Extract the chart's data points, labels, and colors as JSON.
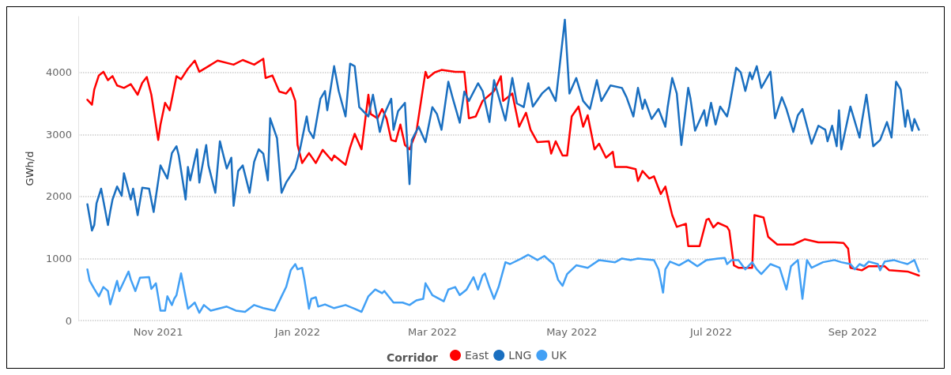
{
  "chart_data": {
    "type": "line",
    "ylabel": "GWh/d",
    "legend_title": "Corridor",
    "legend": "bottom",
    "grid": "y",
    "marker": "none",
    "line_style": "solid",
    "xlim": [
      "2021-09-27",
      "2022-10-04"
    ],
    "xticks": [
      {
        "value": "2021-11-01",
        "label": "Nov 2021"
      },
      {
        "value": "2022-01-01",
        "label": "Jan 2022"
      },
      {
        "value": "2022-03-01",
        "label": "Mar 2022"
      },
      {
        "value": "2022-05-01",
        "label": "May 2022"
      },
      {
        "value": "2022-07-01",
        "label": "Jul 2022"
      },
      {
        "value": "2022-09-01",
        "label": "Sep 2022"
      }
    ],
    "ylim": [
      0,
      4900
    ],
    "yticks": [
      0,
      1000,
      2000,
      3000,
      4000
    ],
    "series": [
      {
        "name": "East",
        "color": "#ff0000",
        "x": [
          "2021-10-01",
          "2021-10-03",
          "2021-10-04",
          "2021-10-06",
          "2021-10-08",
          "2021-10-10",
          "2021-10-12",
          "2021-10-14",
          "2021-10-17",
          "2021-10-20",
          "2021-10-23",
          "2021-10-25",
          "2021-10-27",
          "2021-10-29",
          "2021-11-01",
          "2021-11-02",
          "2021-11-04",
          "2021-11-06",
          "2021-11-09",
          "2021-11-11",
          "2021-11-14",
          "2021-11-17",
          "2021-11-19",
          "2021-11-23",
          "2021-11-27",
          "2021-12-04",
          "2021-12-08",
          "2021-12-13",
          "2021-12-17",
          "2021-12-18",
          "2021-12-21",
          "2021-12-24",
          "2021-12-27",
          "2021-12-29",
          "2021-12-31",
          "2022-01-01",
          "2022-01-03",
          "2022-01-06",
          "2022-01-09",
          "2022-01-12",
          "2022-01-16",
          "2022-01-17",
          "2022-01-22",
          "2022-01-24",
          "2022-01-26",
          "2022-01-29",
          "2022-02-01",
          "2022-02-02",
          "2022-02-05",
          "2022-02-07",
          "2022-02-09",
          "2022-02-11",
          "2022-02-13",
          "2022-02-15",
          "2022-02-17",
          "2022-02-19",
          "2022-02-22",
          "2022-02-26",
          "2022-02-27",
          "2022-03-02",
          "2022-03-05",
          "2022-03-11",
          "2022-03-15",
          "2022-03-17",
          "2022-03-20",
          "2022-03-23",
          "2022-03-28",
          "2022-03-31",
          "2022-04-01",
          "2022-04-05",
          "2022-04-08",
          "2022-04-11",
          "2022-04-13",
          "2022-04-16",
          "2022-04-21",
          "2022-04-22",
          "2022-04-24",
          "2022-04-27",
          "2022-04-29",
          "2022-05-01",
          "2022-05-04",
          "2022-05-06",
          "2022-05-08",
          "2022-05-11",
          "2022-05-13",
          "2022-05-16",
          "2022-05-19",
          "2022-05-20",
          "2022-05-25",
          "2022-05-29",
          "2022-05-30",
          "2022-06-01",
          "2022-06-04",
          "2022-06-06",
          "2022-06-09",
          "2022-06-11",
          "2022-06-12",
          "2022-06-14",
          "2022-06-16",
          "2022-06-20",
          "2022-06-21",
          "2022-06-26",
          "2022-06-29",
          "2022-06-30",
          "2022-07-02",
          "2022-07-04",
          "2022-07-08",
          "2022-07-09",
          "2022-07-11",
          "2022-07-13",
          "2022-07-19",
          "2022-07-20",
          "2022-07-24",
          "2022-07-26",
          "2022-07-30",
          "2022-08-06",
          "2022-08-11",
          "2022-08-17",
          "2022-08-24",
          "2022-08-28",
          "2022-08-30",
          "2022-08-31",
          "2022-09-05",
          "2022-09-08",
          "2022-09-15",
          "2022-09-17",
          "2022-09-25",
          "2022-09-30"
        ],
        "values": [
          3560,
          3480,
          3725,
          3950,
          4010,
          3875,
          3940,
          3790,
          3750,
          3810,
          3640,
          3830,
          3925,
          3640,
          2910,
          3160,
          3510,
          3390,
          3940,
          3890,
          4060,
          4190,
          4010,
          4100,
          4190,
          4125,
          4200,
          4125,
          4220,
          3910,
          3950,
          3690,
          3660,
          3750,
          3540,
          2830,
          2540,
          2700,
          2540,
          2750,
          2580,
          2660,
          2510,
          2790,
          3010,
          2760,
          3640,
          3330,
          3260,
          3410,
          3250,
          2910,
          2890,
          3160,
          2830,
          2760,
          3040,
          4010,
          3910,
          4000,
          4040,
          4010,
          4010,
          3260,
          3290,
          3540,
          3700,
          3940,
          3540,
          3660,
          3125,
          3350,
          3075,
          2875,
          2890,
          2690,
          2890,
          2660,
          2660,
          3290,
          3450,
          3125,
          3310,
          2760,
          2850,
          2625,
          2720,
          2475,
          2475,
          2440,
          2250,
          2410,
          2290,
          2325,
          2040,
          2160,
          2000,
          1700,
          1510,
          1560,
          1200,
          1200,
          1625,
          1640,
          1500,
          1575,
          1510,
          1450,
          890,
          850,
          850,
          1700,
          1660,
          1350,
          1225,
          1225,
          1310,
          1260,
          1260,
          1250,
          1160,
          850,
          810,
          875,
          875,
          810,
          790,
          725
        ]
      },
      {
        "name": "LNG",
        "color": "#1a6fc0",
        "x": [
          "2021-10-01",
          "2021-10-03",
          "2021-10-04",
          "2021-10-05",
          "2021-10-07",
          "2021-10-10",
          "2021-10-11",
          "2021-10-12",
          "2021-10-14",
          "2021-10-16",
          "2021-10-17",
          "2021-10-20",
          "2021-10-21",
          "2021-10-23",
          "2021-10-25",
          "2021-10-28",
          "2021-10-30",
          "2021-11-02",
          "2021-11-05",
          "2021-11-07",
          "2021-11-09",
          "2021-11-10",
          "2021-11-13",
          "2021-11-14",
          "2021-11-15",
          "2021-11-18",
          "2021-11-19",
          "2021-11-22",
          "2021-11-23",
          "2021-11-26",
          "2021-11-28",
          "2021-12-01",
          "2021-12-03",
          "2021-12-04",
          "2021-12-06",
          "2021-12-08",
          "2021-12-11",
          "2021-12-13",
          "2021-12-15",
          "2021-12-17",
          "2021-12-19",
          "2021-12-20",
          "2021-12-23",
          "2021-12-25",
          "2021-12-27",
          "2021-12-31",
          "2022-01-02",
          "2022-01-05",
          "2022-01-06",
          "2022-01-08",
          "2022-01-11",
          "2022-01-13",
          "2022-01-14",
          "2022-01-17",
          "2022-01-19",
          "2022-01-22",
          "2022-01-24",
          "2022-01-26",
          "2022-01-28",
          "2022-02-01",
          "2022-02-03",
          "2022-02-06",
          "2022-02-08",
          "2022-02-11",
          "2022-02-12",
          "2022-02-14",
          "2022-02-17",
          "2022-02-19",
          "2022-02-20",
          "2022-02-23",
          "2022-02-26",
          "2022-03-01",
          "2022-03-03",
          "2022-03-05",
          "2022-03-08",
          "2022-03-10",
          "2022-03-13",
          "2022-03-15",
          "2022-03-17",
          "2022-03-21",
          "2022-03-23",
          "2022-03-26",
          "2022-03-28",
          "2022-04-02",
          "2022-04-05",
          "2022-04-07",
          "2022-04-10",
          "2022-04-12",
          "2022-04-14",
          "2022-04-18",
          "2022-04-21",
          "2022-04-24",
          "2022-04-28",
          "2022-04-30",
          "2022-05-03",
          "2022-05-06",
          "2022-05-09",
          "2022-05-12",
          "2022-05-14",
          "2022-05-18",
          "2022-05-23",
          "2022-05-25",
          "2022-05-28",
          "2022-05-30",
          "2022-06-01",
          "2022-06-02",
          "2022-06-05",
          "2022-06-08",
          "2022-06-11",
          "2022-06-12",
          "2022-06-14",
          "2022-06-16",
          "2022-06-18",
          "2022-06-21",
          "2022-06-22",
          "2022-06-24",
          "2022-06-28",
          "2022-06-29",
          "2022-07-01",
          "2022-07-03",
          "2022-07-05",
          "2022-07-08",
          "2022-07-09",
          "2022-07-12",
          "2022-07-14",
          "2022-07-16",
          "2022-07-18",
          "2022-07-19",
          "2022-07-21",
          "2022-07-23",
          "2022-07-27",
          "2022-07-29",
          "2022-08-01",
          "2022-08-03",
          "2022-08-06",
          "2022-08-08",
          "2022-08-10",
          "2022-08-14",
          "2022-08-17",
          "2022-08-20",
          "2022-08-21",
          "2022-08-23",
          "2022-08-25",
          "2022-08-26",
          "2022-08-27",
          "2022-08-31",
          "2022-09-04",
          "2022-09-05",
          "2022-09-07",
          "2022-09-10",
          "2022-09-13",
          "2022-09-16",
          "2022-09-18",
          "2022-09-20",
          "2022-09-22",
          "2022-09-24",
          "2022-09-25",
          "2022-09-27",
          "2022-09-28",
          "2022-09-30"
        ],
        "values": [
          1875,
          1450,
          1540,
          1890,
          2125,
          1540,
          1760,
          1950,
          2160,
          2010,
          2375,
          1950,
          2125,
          1700,
          2140,
          2125,
          1750,
          2500,
          2290,
          2700,
          2810,
          2660,
          1950,
          2475,
          2260,
          2760,
          2225,
          2830,
          2500,
          2060,
          2890,
          2450,
          2625,
          1850,
          2410,
          2500,
          2060,
          2560,
          2760,
          2690,
          2260,
          3260,
          2940,
          2060,
          2225,
          2450,
          2750,
          3290,
          3060,
          2940,
          3575,
          3700,
          3390,
          4100,
          3700,
          3290,
          4140,
          4100,
          3440,
          3290,
          3640,
          3040,
          3330,
          3575,
          3075,
          3375,
          3510,
          2200,
          2910,
          3125,
          2875,
          3440,
          3330,
          3075,
          3850,
          3575,
          3190,
          3690,
          3540,
          3825,
          3700,
          3200,
          3875,
          3225,
          3910,
          3500,
          3440,
          3825,
          3450,
          3660,
          3760,
          3540,
          4850,
          3660,
          3910,
          3540,
          3410,
          3875,
          3540,
          3790,
          3750,
          3600,
          3290,
          3750,
          3410,
          3560,
          3250,
          3410,
          3125,
          3440,
          3910,
          3660,
          2830,
          3750,
          3575,
          3060,
          3390,
          3140,
          3510,
          3160,
          3450,
          3290,
          3450,
          4075,
          4000,
          3700,
          4000,
          3890,
          4100,
          3750,
          4010,
          3260,
          3600,
          3410,
          3040,
          3310,
          3410,
          2850,
          3140,
          3075,
          2890,
          3140,
          2810,
          3390,
          2760,
          3450,
          2950,
          3200,
          3640,
          2810,
          2910,
          3200,
          2950,
          3850,
          3725,
          3125,
          3390,
          3060,
          3250,
          3075
        ]
      },
      {
        "name": "UK",
        "color": "#42a0f5",
        "x": [
          "2021-10-01",
          "2021-10-02",
          "2021-10-04",
          "2021-10-06",
          "2021-10-08",
          "2021-10-10",
          "2021-10-11",
          "2021-10-14",
          "2021-10-15",
          "2021-10-19",
          "2021-10-20",
          "2021-10-22",
          "2021-10-24",
          "2021-10-28",
          "2021-10-29",
          "2021-10-31",
          "2021-11-02",
          "2021-11-04",
          "2021-11-05",
          "2021-11-07",
          "2021-11-08",
          "2021-11-09",
          "2021-11-11",
          "2021-11-13",
          "2021-11-14",
          "2021-11-17",
          "2021-11-19",
          "2021-11-21",
          "2021-11-24",
          "2021-12-01",
          "2021-12-05",
          "2021-12-09",
          "2021-12-13",
          "2021-12-17",
          "2021-12-22",
          "2021-12-25",
          "2021-12-27",
          "2021-12-29",
          "2021-12-31",
          "2022-01-01",
          "2022-01-03",
          "2022-01-04",
          "2022-01-06",
          "2022-01-07",
          "2022-01-09",
          "2022-01-10",
          "2022-01-13",
          "2022-01-17",
          "2022-01-22",
          "2022-01-26",
          "2022-01-29",
          "2022-02-01",
          "2022-02-04",
          "2022-02-07",
          "2022-02-08",
          "2022-02-12",
          "2022-02-16",
          "2022-02-19",
          "2022-02-22",
          "2022-02-25",
          "2022-02-26",
          "2022-03-01",
          "2022-03-06",
          "2022-03-08",
          "2022-03-11",
          "2022-03-13",
          "2022-03-16",
          "2022-03-19",
          "2022-03-21",
          "2022-03-23",
          "2022-03-24",
          "2022-03-26",
          "2022-03-28",
          "2022-03-30",
          "2022-04-02",
          "2022-04-04",
          "2022-04-09",
          "2022-04-12",
          "2022-04-16",
          "2022-04-19",
          "2022-04-23",
          "2022-04-25",
          "2022-04-27",
          "2022-04-29",
          "2022-05-03",
          "2022-05-08",
          "2022-05-13",
          "2022-05-20",
          "2022-05-23",
          "2022-05-27",
          "2022-05-30",
          "2022-06-06",
          "2022-06-08",
          "2022-06-10",
          "2022-06-11",
          "2022-06-13",
          "2022-06-17",
          "2022-06-21",
          "2022-06-25",
          "2022-06-29",
          "2022-07-04",
          "2022-07-07",
          "2022-07-08",
          "2022-07-10",
          "2022-07-13",
          "2022-07-16",
          "2022-07-19",
          "2022-07-21",
          "2022-07-23",
          "2022-07-27",
          "2022-07-31",
          "2022-08-03",
          "2022-08-05",
          "2022-08-08",
          "2022-08-10",
          "2022-08-12",
          "2022-08-14",
          "2022-08-19",
          "2022-08-24",
          "2022-08-27",
          "2022-08-31",
          "2022-09-02",
          "2022-09-04",
          "2022-09-06",
          "2022-09-08",
          "2022-09-12",
          "2022-09-13",
          "2022-09-15",
          "2022-09-19",
          "2022-09-22",
          "2022-09-25",
          "2022-09-28",
          "2022-09-30"
        ],
        "values": [
          825,
          640,
          510,
          390,
          540,
          475,
          260,
          640,
          475,
          790,
          660,
          475,
          690,
          700,
          510,
          600,
          160,
          160,
          390,
          250,
          350,
          410,
          760,
          375,
          190,
          290,
          125,
          250,
          160,
          225,
          160,
          140,
          250,
          200,
          160,
          390,
          540,
          810,
          910,
          825,
          850,
          660,
          190,
          350,
          375,
          225,
          260,
          200,
          250,
          190,
          140,
          390,
          500,
          440,
          475,
          290,
          290,
          250,
          325,
          350,
          600,
          410,
          310,
          500,
          540,
          410,
          500,
          700,
          500,
          725,
          760,
          540,
          350,
          540,
          940,
          910,
          1000,
          1060,
          975,
          1040,
          910,
          660,
          560,
          750,
          890,
          850,
          975,
          940,
          1000,
          975,
          1000,
          975,
          825,
          450,
          825,
          950,
          890,
          975,
          875,
          975,
          1000,
          1010,
          910,
          975,
          975,
          825,
          940,
          825,
          750,
          910,
          850,
          500,
          875,
          975,
          350,
          975,
          850,
          940,
          975,
          940,
          910,
          825,
          910,
          875,
          950,
          910,
          810,
          950,
          975,
          940,
          910,
          975,
          790
        ]
      }
    ]
  }
}
